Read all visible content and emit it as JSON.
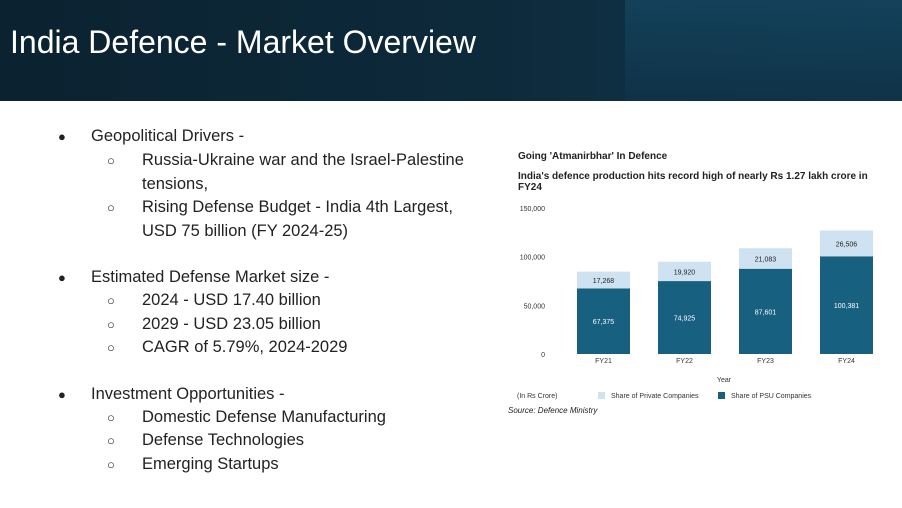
{
  "slide": {
    "title": "India Defence - Market Overview"
  },
  "bullets": [
    {
      "text": "Geopolitical Drivers -",
      "marker": "●"
    },
    {
      "text": "Russia-Ukraine war and the Israel-Palestine",
      "marker": "○"
    },
    {
      "text": "tensions,",
      "marker": ""
    },
    {
      "text": "Rising Defense Budget - India 4th Largest,",
      "marker": "○"
    },
    {
      "text": "USD 75 billion (FY 2024-25)",
      "marker": ""
    },
    {
      "text": "Estimated Defense Market size -",
      "marker": "●"
    },
    {
      "text": "2024 - USD 17.40 billion",
      "marker": "○"
    },
    {
      "text": "2029 - USD 23.05 billion",
      "marker": "○"
    },
    {
      "text": "CAGR of 5.79%, 2024-2029",
      "marker": "○"
    },
    {
      "text": "Investment Opportunities -",
      "marker": "●"
    },
    {
      "text": "Domestic Defense Manufacturing",
      "marker": "○"
    },
    {
      "text": "Defense Technologies",
      "marker": "○"
    },
    {
      "text": "Emerging Startups",
      "marker": "○"
    }
  ],
  "colors": {
    "psu": "#18607f",
    "private": "#cfe2f2",
    "header": "#0d2a3b"
  },
  "chart_data": {
    "type": "bar",
    "stacked": true,
    "title": "Going 'Atmanirbhar' In Defence",
    "subtitle": "India's defence production hits record high of nearly Rs 1.27 lakh crore in FY24",
    "categories": [
      "FY21",
      "FY22",
      "FY23",
      "FY24"
    ],
    "series": [
      {
        "name": "Share of PSU Companies",
        "values": [
          67375,
          74925,
          87601,
          100381
        ]
      },
      {
        "name": "Share of Private Companies",
        "values": [
          17268,
          19920,
          21083,
          26506
        ]
      }
    ],
    "value_labels": {
      "psu": [
        "67,375",
        "74,925",
        "87,601",
        "100,381"
      ],
      "private": [
        "17,268",
        "19,920",
        "21,083",
        "26,506"
      ]
    },
    "y_ticks": [
      0,
      50000,
      100000,
      150000
    ],
    "y_tick_labels": [
      "0",
      "50,000",
      "100,000",
      "150,000"
    ],
    "ylim": [
      0,
      150000
    ],
    "xlabel": "Year",
    "unit_note": "(In Rs Crore)",
    "legend_position": "bottom",
    "source": "Source: Defence Ministry"
  }
}
